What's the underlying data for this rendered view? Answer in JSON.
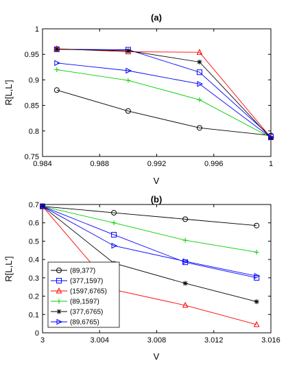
{
  "chart_data": [
    {
      "type": "line",
      "title": "(a)",
      "xlabel": "V",
      "ylabel": "R[L,L']",
      "xlim": [
        0.984,
        1.0
      ],
      "ylim": [
        0.75,
        1.0
      ],
      "xticks": [
        0.984,
        0.988,
        0.992,
        0.996,
        1.0
      ],
      "xtick_labels": [
        "0.984",
        "0.988",
        "0.992",
        "0.996",
        "1"
      ],
      "yticks": [
        0.75,
        0.8,
        0.85,
        0.9,
        0.95,
        1.0
      ],
      "ytick_labels": [
        "0.75",
        "0.8",
        "0.85",
        "0.9",
        "0.95",
        "1"
      ],
      "grid": false,
      "x": [
        0.985,
        0.99,
        0.995,
        1.0
      ],
      "series": [
        {
          "name": "(89,377)",
          "color": "#000000",
          "marker": "circle",
          "values": [
            0.88,
            0.839,
            0.806,
            0.791
          ]
        },
        {
          "name": "(377,1597)",
          "color": "#0000ff",
          "marker": "square",
          "values": [
            0.96,
            0.959,
            0.915,
            0.789
          ]
        },
        {
          "name": "(1597,6765)",
          "color": "#ff0000",
          "marker": "triangle-up",
          "values": [
            0.961,
            0.955,
            0.954,
            0.787
          ]
        },
        {
          "name": "(89,1597)",
          "color": "#00cc00",
          "marker": "plus",
          "values": [
            0.92,
            0.899,
            0.861,
            0.787
          ]
        },
        {
          "name": "(377,6765)",
          "color": "#000000",
          "marker": "asterisk",
          "values": [
            0.96,
            0.957,
            0.935,
            0.786
          ]
        },
        {
          "name": "(89,6765)",
          "color": "#0000ff",
          "marker": "triangle-right",
          "values": [
            0.933,
            0.918,
            0.892,
            0.787
          ]
        }
      ]
    },
    {
      "type": "line",
      "title": "(b)",
      "xlabel": "V",
      "ylabel": "R[L,L']",
      "xlim": [
        3.0,
        3.016
      ],
      "ylim": [
        0,
        0.7
      ],
      "xticks": [
        3.0,
        3.004,
        3.008,
        3.012,
        3.016
      ],
      "xtick_labels": [
        "3",
        "3.004",
        "3.008",
        "3.012",
        "3.016"
      ],
      "yticks": [
        0,
        0.1,
        0.2,
        0.3,
        0.4,
        0.5,
        0.6,
        0.7
      ],
      "ytick_labels": [
        "0",
        "0.1",
        "0.2",
        "0.3",
        "0.4",
        "0.5",
        "0.6",
        "0.7"
      ],
      "grid": false,
      "legend": "left",
      "x": [
        3.0,
        3.005,
        3.01,
        3.015
      ],
      "series": [
        {
          "name": "(89,377)",
          "color": "#000000",
          "marker": "circle",
          "values": [
            0.69,
            0.655,
            0.62,
            0.585
          ]
        },
        {
          "name": "(377,1597)",
          "color": "#0000ff",
          "marker": "square",
          "values": [
            0.69,
            0.535,
            0.385,
            0.3
          ]
        },
        {
          "name": "(1597,6765)",
          "color": "#ff0000",
          "marker": "triangle-up",
          "values": [
            0.69,
            0.235,
            0.15,
            0.045
          ]
        },
        {
          "name": "(89,1597)",
          "color": "#00cc00",
          "marker": "plus",
          "values": [
            0.69,
            0.6,
            0.505,
            0.44
          ]
        },
        {
          "name": "(377,6765)",
          "color": "#000000",
          "marker": "asterisk",
          "values": [
            0.69,
            0.38,
            0.27,
            0.17
          ]
        },
        {
          "name": "(89,6765)",
          "color": "#0000ff",
          "marker": "triangle-right",
          "values": [
            0.69,
            0.475,
            0.39,
            0.31
          ]
        }
      ]
    }
  ]
}
